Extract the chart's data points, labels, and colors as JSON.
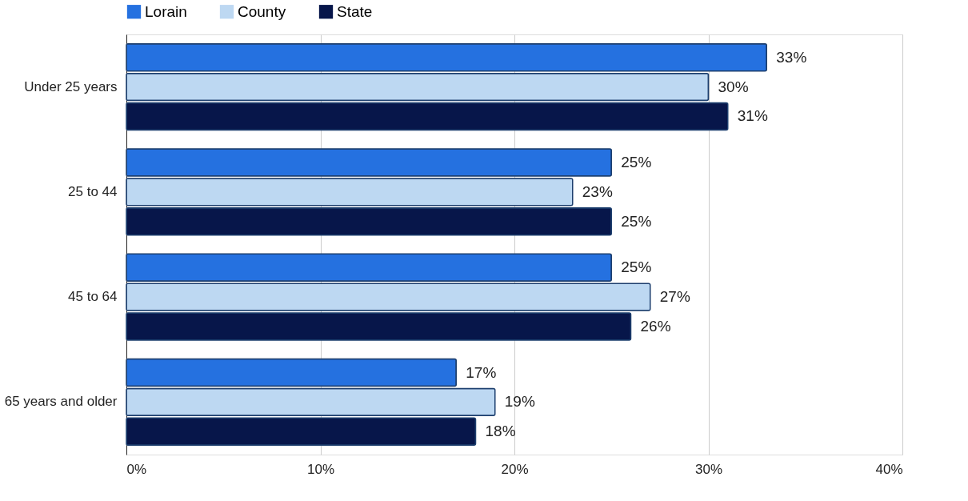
{
  "chart_data": {
    "type": "bar",
    "orientation": "horizontal",
    "categories": [
      "Under 25 years",
      "25 to 44",
      "45 to 64",
      "65 years and older"
    ],
    "series": [
      {
        "name": "Lorain",
        "color": "#2571e0",
        "values": [
          33,
          25,
          25,
          17
        ],
        "value_labels": [
          "33%",
          "25%",
          "25%",
          "17%"
        ]
      },
      {
        "name": "County",
        "color": "#bdd8f2",
        "values": [
          30,
          23,
          27,
          19
        ],
        "value_labels": [
          "30%",
          "23%",
          "27%",
          "19%"
        ]
      },
      {
        "name": "State",
        "color": "#07164a",
        "values": [
          31,
          25,
          26,
          18
        ],
        "value_labels": [
          "31%",
          "25%",
          "26%",
          "18%"
        ]
      }
    ],
    "xlim": [
      0,
      40
    ],
    "xticks": [
      {
        "value": 0,
        "label": "0%"
      },
      {
        "value": 10,
        "label": "10%"
      },
      {
        "value": 20,
        "label": "20%"
      },
      {
        "value": 30,
        "label": "30%"
      },
      {
        "value": 40,
        "label": "40%"
      }
    ],
    "grid": "x",
    "legend": "top"
  }
}
